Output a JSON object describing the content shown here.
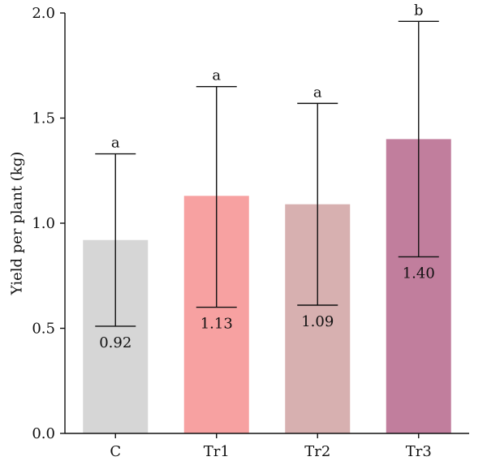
{
  "chart_data": {
    "type": "bar",
    "title": "",
    "xlabel": "",
    "ylabel": "Yield per plant (kg)",
    "ylim": [
      0,
      2.0
    ],
    "yticks": [
      "0.0",
      "0.5",
      "1.0",
      "1.5",
      "2.0"
    ],
    "categories": [
      "C",
      "Tr1",
      "Tr2",
      "Tr3"
    ],
    "values": [
      0.92,
      1.13,
      1.09,
      1.4
    ],
    "value_labels": [
      "0.92",
      "1.13",
      "1.09",
      "1.40"
    ],
    "error_low": [
      0.51,
      0.6,
      0.61,
      0.84
    ],
    "error_high": [
      1.33,
      1.65,
      1.57,
      1.96
    ],
    "significance": [
      "a",
      "a",
      "a",
      "b"
    ],
    "colors": [
      "#d6d6d6",
      "#f7a1a1",
      "#d7b0b0",
      "#c17e9d"
    ],
    "grid": false,
    "legend": "none"
  }
}
